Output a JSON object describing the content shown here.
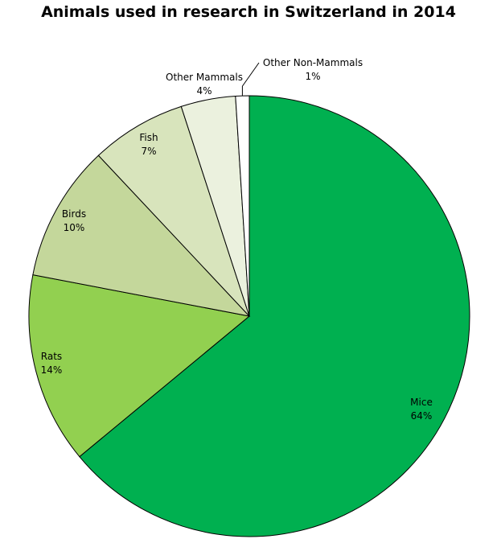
{
  "chart_data": {
    "type": "pie",
    "title": "Animals used in research in Switzerland in 2014",
    "slices": [
      {
        "label": "Mice",
        "value": 64,
        "value_label": "64%",
        "color": "#00b050"
      },
      {
        "label": "Rats",
        "value": 14,
        "value_label": "14%",
        "color": "#92d050"
      },
      {
        "label": "Birds",
        "value": 10,
        "value_label": "10%",
        "color": "#c4d79b"
      },
      {
        "label": "Fish",
        "value": 7,
        "value_label": "7%",
        "color": "#d8e4bc"
      },
      {
        "label": "Other Mammals",
        "value": 4,
        "value_label": "4%",
        "color": "#ebf1de"
      },
      {
        "label": "Other Non-Mammals",
        "value": 1,
        "value_label": "1%",
        "color": "#ffffff"
      }
    ],
    "start_angle": "12 o'clock",
    "direction": "clockwise",
    "legend": "none"
  }
}
